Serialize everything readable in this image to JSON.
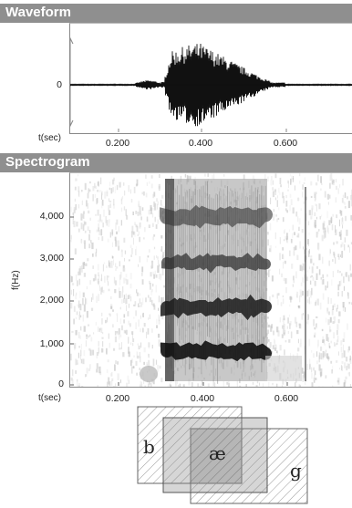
{
  "waveform": {
    "title": "Waveform",
    "y_tick": "0",
    "x_axis_label": "t(sec)",
    "x_ticks": [
      "0.200",
      "0.400",
      "0.600"
    ]
  },
  "spectrogram": {
    "title": "Spectrogram",
    "y_axis_label": "f(Hz)",
    "y_ticks": [
      "4,000",
      "3,000",
      "2,000",
      "1,000",
      "0"
    ],
    "x_axis_label": "t(sec)",
    "x_ticks": [
      "0.200",
      "0.400",
      "0.600"
    ]
  },
  "segments": {
    "labels": [
      "b",
      "æ",
      "g"
    ]
  },
  "chart_data": [
    {
      "type": "line",
      "title": "Waveform",
      "xlabel": "t(sec)",
      "ylabel": "",
      "xlim": [
        0.0,
        0.78
      ],
      "x_ticks": [
        0.2,
        0.4,
        0.6
      ],
      "y_ticks": [
        0
      ]
    },
    {
      "type": "heatmap",
      "title": "Spectrogram",
      "xlabel": "t(sec)",
      "ylabel": "f(Hz)",
      "xlim": [
        0.0,
        0.78
      ],
      "ylim": [
        0,
        4900
      ],
      "x_ticks": [
        0.2,
        0.4,
        0.6
      ],
      "y_ticks": [
        0,
        1000,
        2000,
        3000,
        4000
      ]
    }
  ]
}
